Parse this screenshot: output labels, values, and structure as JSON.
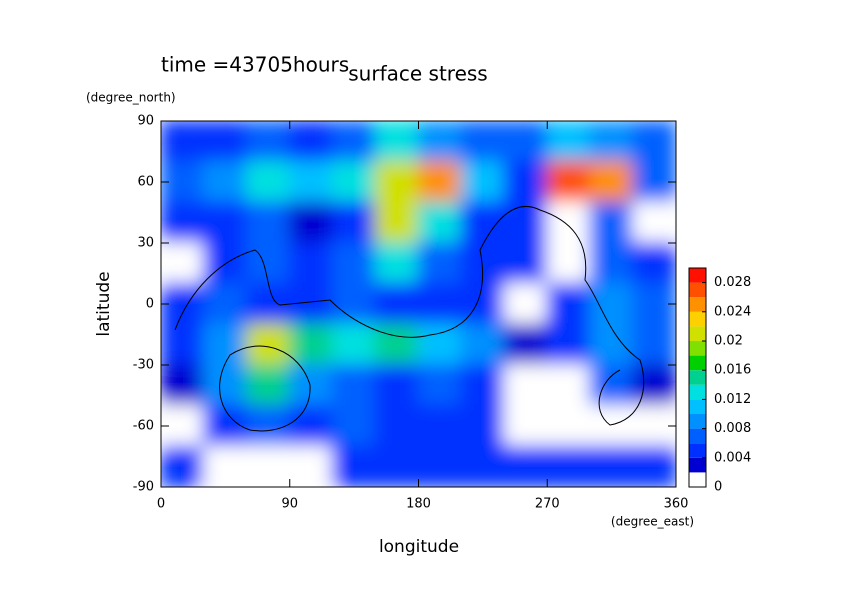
{
  "chart_data": {
    "type": "contour",
    "title": "surface stress",
    "subtitle": "time =43705hours",
    "x_label": "longitude",
    "x_unit": "(degree_east)",
    "y_label": "latitude",
    "y_unit": "(degree_north)",
    "xlim": [
      0,
      360
    ],
    "xticks": [
      0,
      90,
      180,
      270,
      360
    ],
    "ylim": [
      -90,
      90
    ],
    "yticks": [
      -90,
      -60,
      -30,
      0,
      30,
      60,
      90
    ],
    "x": [
      15,
      45,
      75,
      105,
      135,
      165,
      195,
      225,
      255,
      285,
      315,
      345
    ],
    "y": [
      80,
      60,
      40,
      20,
      0,
      -20,
      -40,
      -60,
      -80
    ],
    "z": [
      [
        0.004,
        0.004,
        0.006,
        0.004,
        0.006,
        0.012,
        0.008,
        0.006,
        0.006,
        0.01,
        0.008,
        0.006
      ],
      [
        0.006,
        0.008,
        0.012,
        0.01,
        0.012,
        0.02,
        0.024,
        0.01,
        0.004,
        0.026,
        0.024,
        0.006
      ],
      [
        0.004,
        0.004,
        0.006,
        0.002,
        0.004,
        0.02,
        0.012,
        0.004,
        0.004,
        0,
        0.006,
        0
      ],
      [
        0,
        0.004,
        0.006,
        0.004,
        0.006,
        0.012,
        0.006,
        0.004,
        0.004,
        0,
        0.006,
        0.004
      ],
      [
        0.004,
        0.006,
        0.004,
        0.004,
        0.006,
        0.004,
        0.004,
        0.004,
        0,
        0.004,
        0.008,
        0.006
      ],
      [
        0.004,
        0.008,
        0.02,
        0.014,
        0.012,
        0.014,
        0.01,
        0.008,
        0.002,
        0.004,
        0.008,
        0.006
      ],
      [
        0.002,
        0.008,
        0.014,
        0.008,
        0.006,
        0.004,
        0.006,
        0.004,
        0,
        0,
        0.006,
        0.002
      ],
      [
        0,
        0.004,
        0.006,
        0.004,
        0.006,
        0.004,
        0.004,
        0.004,
        0,
        0,
        0,
        0
      ],
      [
        0.004,
        0,
        0,
        0,
        0.004,
        0.004,
        0.004,
        0.004,
        0.004,
        0.004,
        0.004,
        0.004
      ]
    ],
    "levels": [
      0,
      0.002,
      0.004,
      0.006,
      0.008,
      0.01,
      0.012,
      0.014,
      0.016,
      0.018,
      0.02,
      0.022,
      0.024,
      0.026,
      0.028,
      0.03
    ],
    "colors": [
      "#ffffff",
      "#0000d0",
      "#0030ff",
      "#0060ff",
      "#0090ff",
      "#00c0ff",
      "#00e0e0",
      "#00d090",
      "#00d000",
      "#80e000",
      "#d0e000",
      "#ffd000",
      "#ff9000",
      "#ff5000",
      "#ff1000"
    ],
    "cticks": [
      0,
      0.004,
      0.008,
      0.012,
      0.016,
      0.02,
      0.024,
      0.028
    ]
  }
}
